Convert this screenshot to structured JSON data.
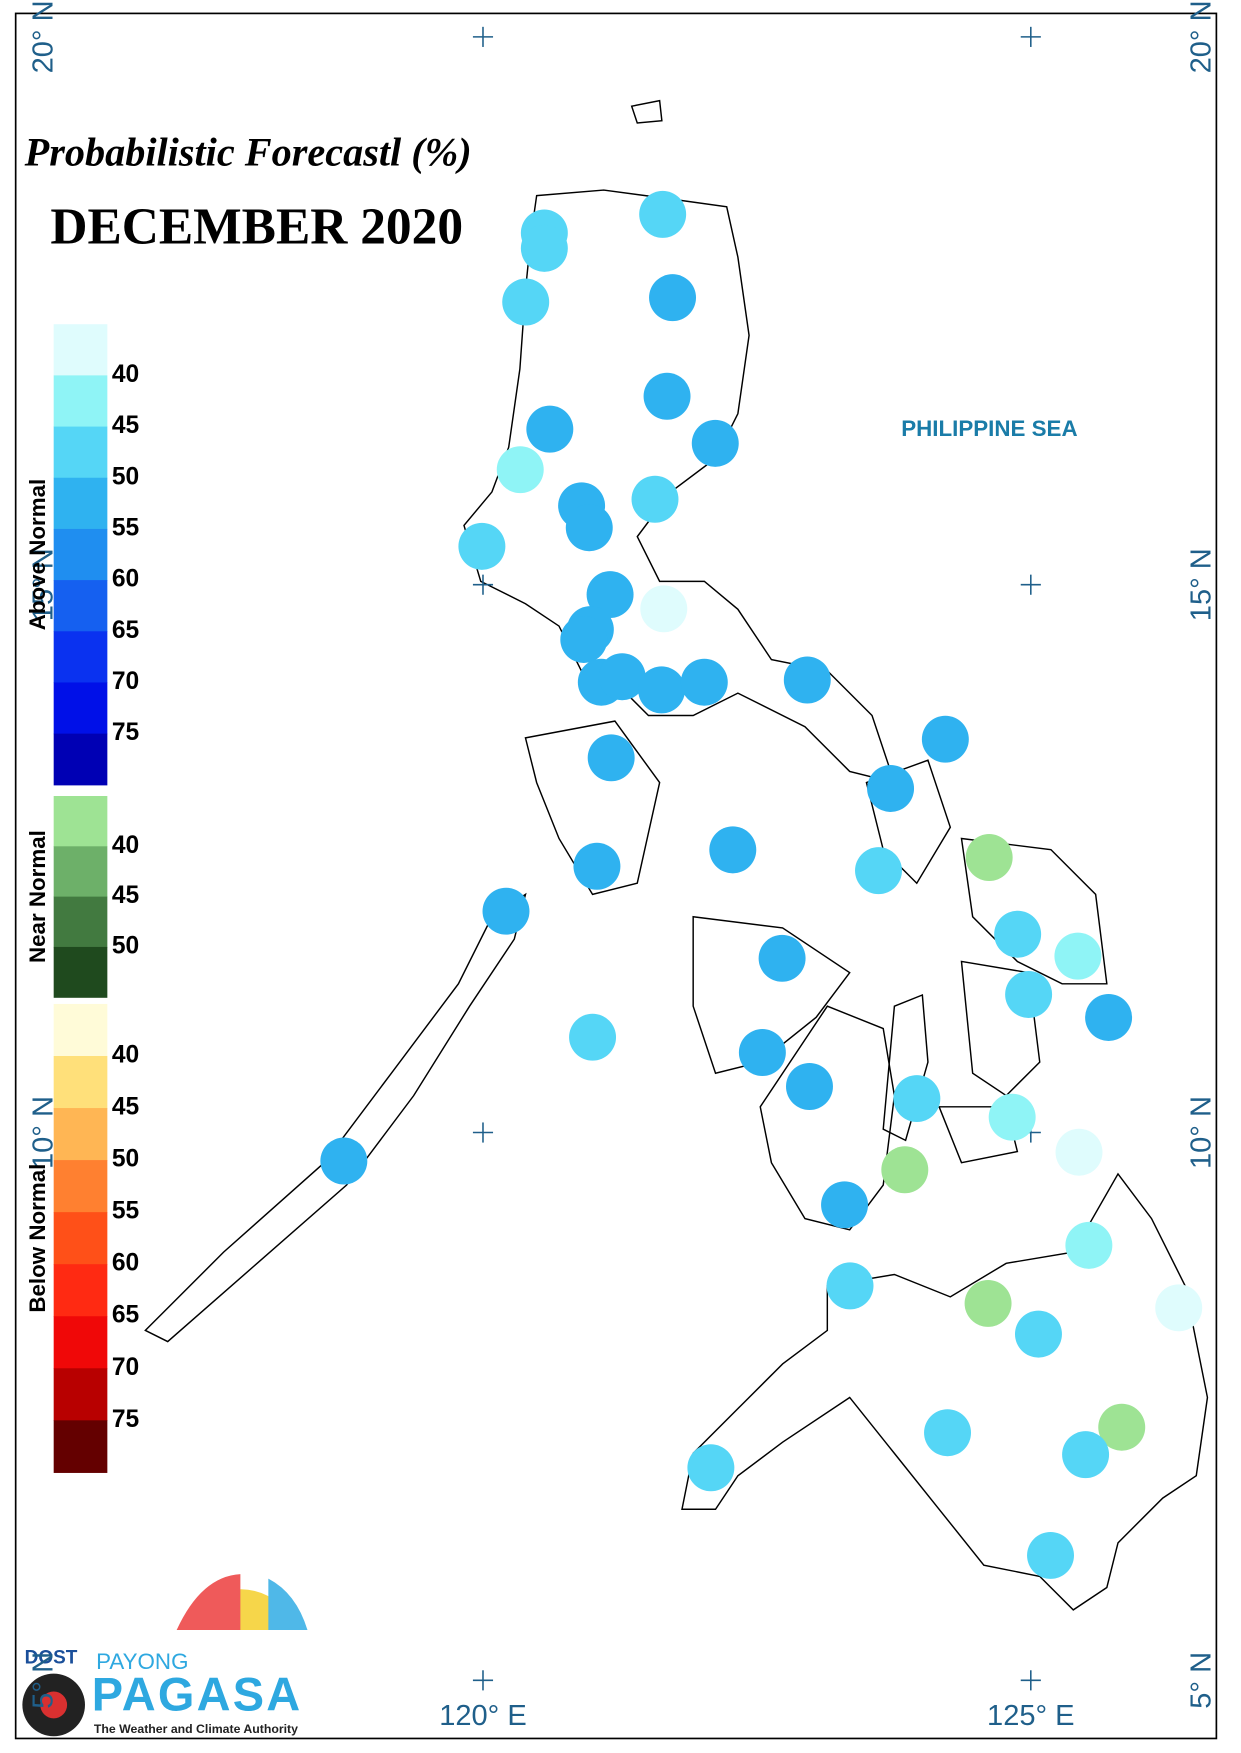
{
  "map": {
    "title": "Probabilistic Forecastl (%)",
    "subtitle": "DECEMBER 2020",
    "sea_label": "PHILIPPINE SEA",
    "xticks": [
      {
        "value": 120,
        "label": "120° E"
      },
      {
        "value": 125,
        "label": "125° E"
      }
    ],
    "yticks": [
      {
        "value": 5,
        "label": "5° N"
      },
      {
        "value": 10,
        "label": "10° N"
      },
      {
        "value": 15,
        "label": "15° N"
      },
      {
        "value": 20,
        "label": "20° N"
      }
    ],
    "legend": [
      {
        "title": "Above Normal",
        "colors": [
          "#dffcfd",
          "#8ff4f6",
          "#55d6f6",
          "#2fb2f0",
          "#1f8ef0",
          "#1560f0",
          "#0a32f0",
          "#0010e8",
          "#0000b4"
        ],
        "labels": [
          40,
          45,
          50,
          55,
          60,
          65,
          70,
          75
        ]
      },
      {
        "title": "Near Normal",
        "colors": [
          "#9ee394",
          "#6db069",
          "#427a40",
          "#1f4a1e"
        ],
        "labels": [
          40,
          45,
          50
        ]
      },
      {
        "title": "Below Normal",
        "colors": [
          "#fffbd8",
          "#ffe07a",
          "#ffb654",
          "#ff8030",
          "#ff5018",
          "#ff2a12",
          "#f00808",
          "#b80000",
          "#640000"
        ],
        "labels": [
          40,
          45,
          50,
          55,
          60,
          65,
          70,
          75
        ]
      }
    ],
    "stations": [
      {
        "lon": 120.56,
        "lat": 18.21,
        "color": "#55d6f6"
      },
      {
        "lon": 120.56,
        "lat": 18.07,
        "color": "#55d6f6"
      },
      {
        "lon": 121.64,
        "lat": 18.38,
        "color": "#55d6f6"
      },
      {
        "lon": 120.39,
        "lat": 17.58,
        "color": "#55d6f6"
      },
      {
        "lon": 121.73,
        "lat": 17.62,
        "color": "#2fb2f0"
      },
      {
        "lon": 121.68,
        "lat": 16.72,
        "color": "#2fb2f0"
      },
      {
        "lon": 120.61,
        "lat": 16.42,
        "color": "#2fb2f0"
      },
      {
        "lon": 122.12,
        "lat": 16.29,
        "color": "#2fb2f0"
      },
      {
        "lon": 120.34,
        "lat": 16.05,
        "color": "#8ff4f6"
      },
      {
        "lon": 120.9,
        "lat": 15.72,
        "color": "#2fb2f0"
      },
      {
        "lon": 121.57,
        "lat": 15.78,
        "color": "#55d6f6"
      },
      {
        "lon": 120.97,
        "lat": 15.52,
        "color": "#2fb2f0"
      },
      {
        "lon": 119.99,
        "lat": 15.35,
        "color": "#55d6f6"
      },
      {
        "lon": 121.16,
        "lat": 14.91,
        "color": "#2fb2f0"
      },
      {
        "lon": 121.65,
        "lat": 14.78,
        "color": "#dffcfd"
      },
      {
        "lon": 120.98,
        "lat": 14.59,
        "color": "#2fb2f0"
      },
      {
        "lon": 120.92,
        "lat": 14.5,
        "color": "#2fb2f0"
      },
      {
        "lon": 121.08,
        "lat": 14.11,
        "color": "#2fb2f0"
      },
      {
        "lon": 121.27,
        "lat": 14.16,
        "color": "#2fb2f0"
      },
      {
        "lon": 121.63,
        "lat": 14.04,
        "color": "#2fb2f0"
      },
      {
        "lon": 122.02,
        "lat": 14.11,
        "color": "#2fb2f0"
      },
      {
        "lon": 122.96,
        "lat": 14.13,
        "color": "#2fb2f0"
      },
      {
        "lon": 124.22,
        "lat": 13.59,
        "color": "#2fb2f0"
      },
      {
        "lon": 121.17,
        "lat": 13.42,
        "color": "#2fb2f0"
      },
      {
        "lon": 123.72,
        "lat": 13.14,
        "color": "#2fb2f0"
      },
      {
        "lon": 122.28,
        "lat": 12.58,
        "color": "#2fb2f0"
      },
      {
        "lon": 124.62,
        "lat": 12.51,
        "color": "#9ee394"
      },
      {
        "lon": 121.04,
        "lat": 12.43,
        "color": "#2fb2f0"
      },
      {
        "lon": 123.61,
        "lat": 12.39,
        "color": "#55d6f6"
      },
      {
        "lon": 120.21,
        "lat": 12.02,
        "color": "#2fb2f0"
      },
      {
        "lon": 124.88,
        "lat": 11.81,
        "color": "#55d6f6"
      },
      {
        "lon": 125.43,
        "lat": 11.61,
        "color": "#8ff4f6"
      },
      {
        "lon": 122.73,
        "lat": 11.59,
        "color": "#2fb2f0"
      },
      {
        "lon": 124.98,
        "lat": 11.26,
        "color": "#55d6f6"
      },
      {
        "lon": 125.71,
        "lat": 11.05,
        "color": "#2fb2f0"
      },
      {
        "lon": 121.0,
        "lat": 10.87,
        "color": "#55d6f6"
      },
      {
        "lon": 122.55,
        "lat": 10.73,
        "color": "#2fb2f0"
      },
      {
        "lon": 122.98,
        "lat": 10.42,
        "color": "#2fb2f0"
      },
      {
        "lon": 123.96,
        "lat": 10.31,
        "color": "#55d6f6"
      },
      {
        "lon": 124.83,
        "lat": 10.14,
        "color": "#8ff4f6"
      },
      {
        "lon": 125.44,
        "lat": 9.82,
        "color": "#dffcfd"
      },
      {
        "lon": 118.73,
        "lat": 9.74,
        "color": "#2fb2f0"
      },
      {
        "lon": 123.85,
        "lat": 9.66,
        "color": "#9ee394"
      },
      {
        "lon": 123.3,
        "lat": 9.34,
        "color": "#2fb2f0"
      },
      {
        "lon": 125.53,
        "lat": 8.97,
        "color": "#8ff4f6"
      },
      {
        "lon": 123.35,
        "lat": 8.6,
        "color": "#55d6f6"
      },
      {
        "lon": 124.61,
        "lat": 8.44,
        "color": "#9ee394"
      },
      {
        "lon": 126.35,
        "lat": 8.4,
        "color": "#dffcfd"
      },
      {
        "lon": 125.07,
        "lat": 8.16,
        "color": "#55d6f6"
      },
      {
        "lon": 124.24,
        "lat": 7.26,
        "color": "#55d6f6"
      },
      {
        "lon": 125.83,
        "lat": 7.31,
        "color": "#9ee394"
      },
      {
        "lon": 125.5,
        "lat": 7.06,
        "color": "#55d6f6"
      },
      {
        "lon": 122.08,
        "lat": 6.94,
        "color": "#55d6f6"
      },
      {
        "lon": 125.18,
        "lat": 6.14,
        "color": "#55d6f6"
      }
    ],
    "logo": {
      "agency": "DOST",
      "line1": "PAYONG",
      "line2": "PAGASA",
      "tagline": "The Weather and Climate Authority"
    }
  }
}
